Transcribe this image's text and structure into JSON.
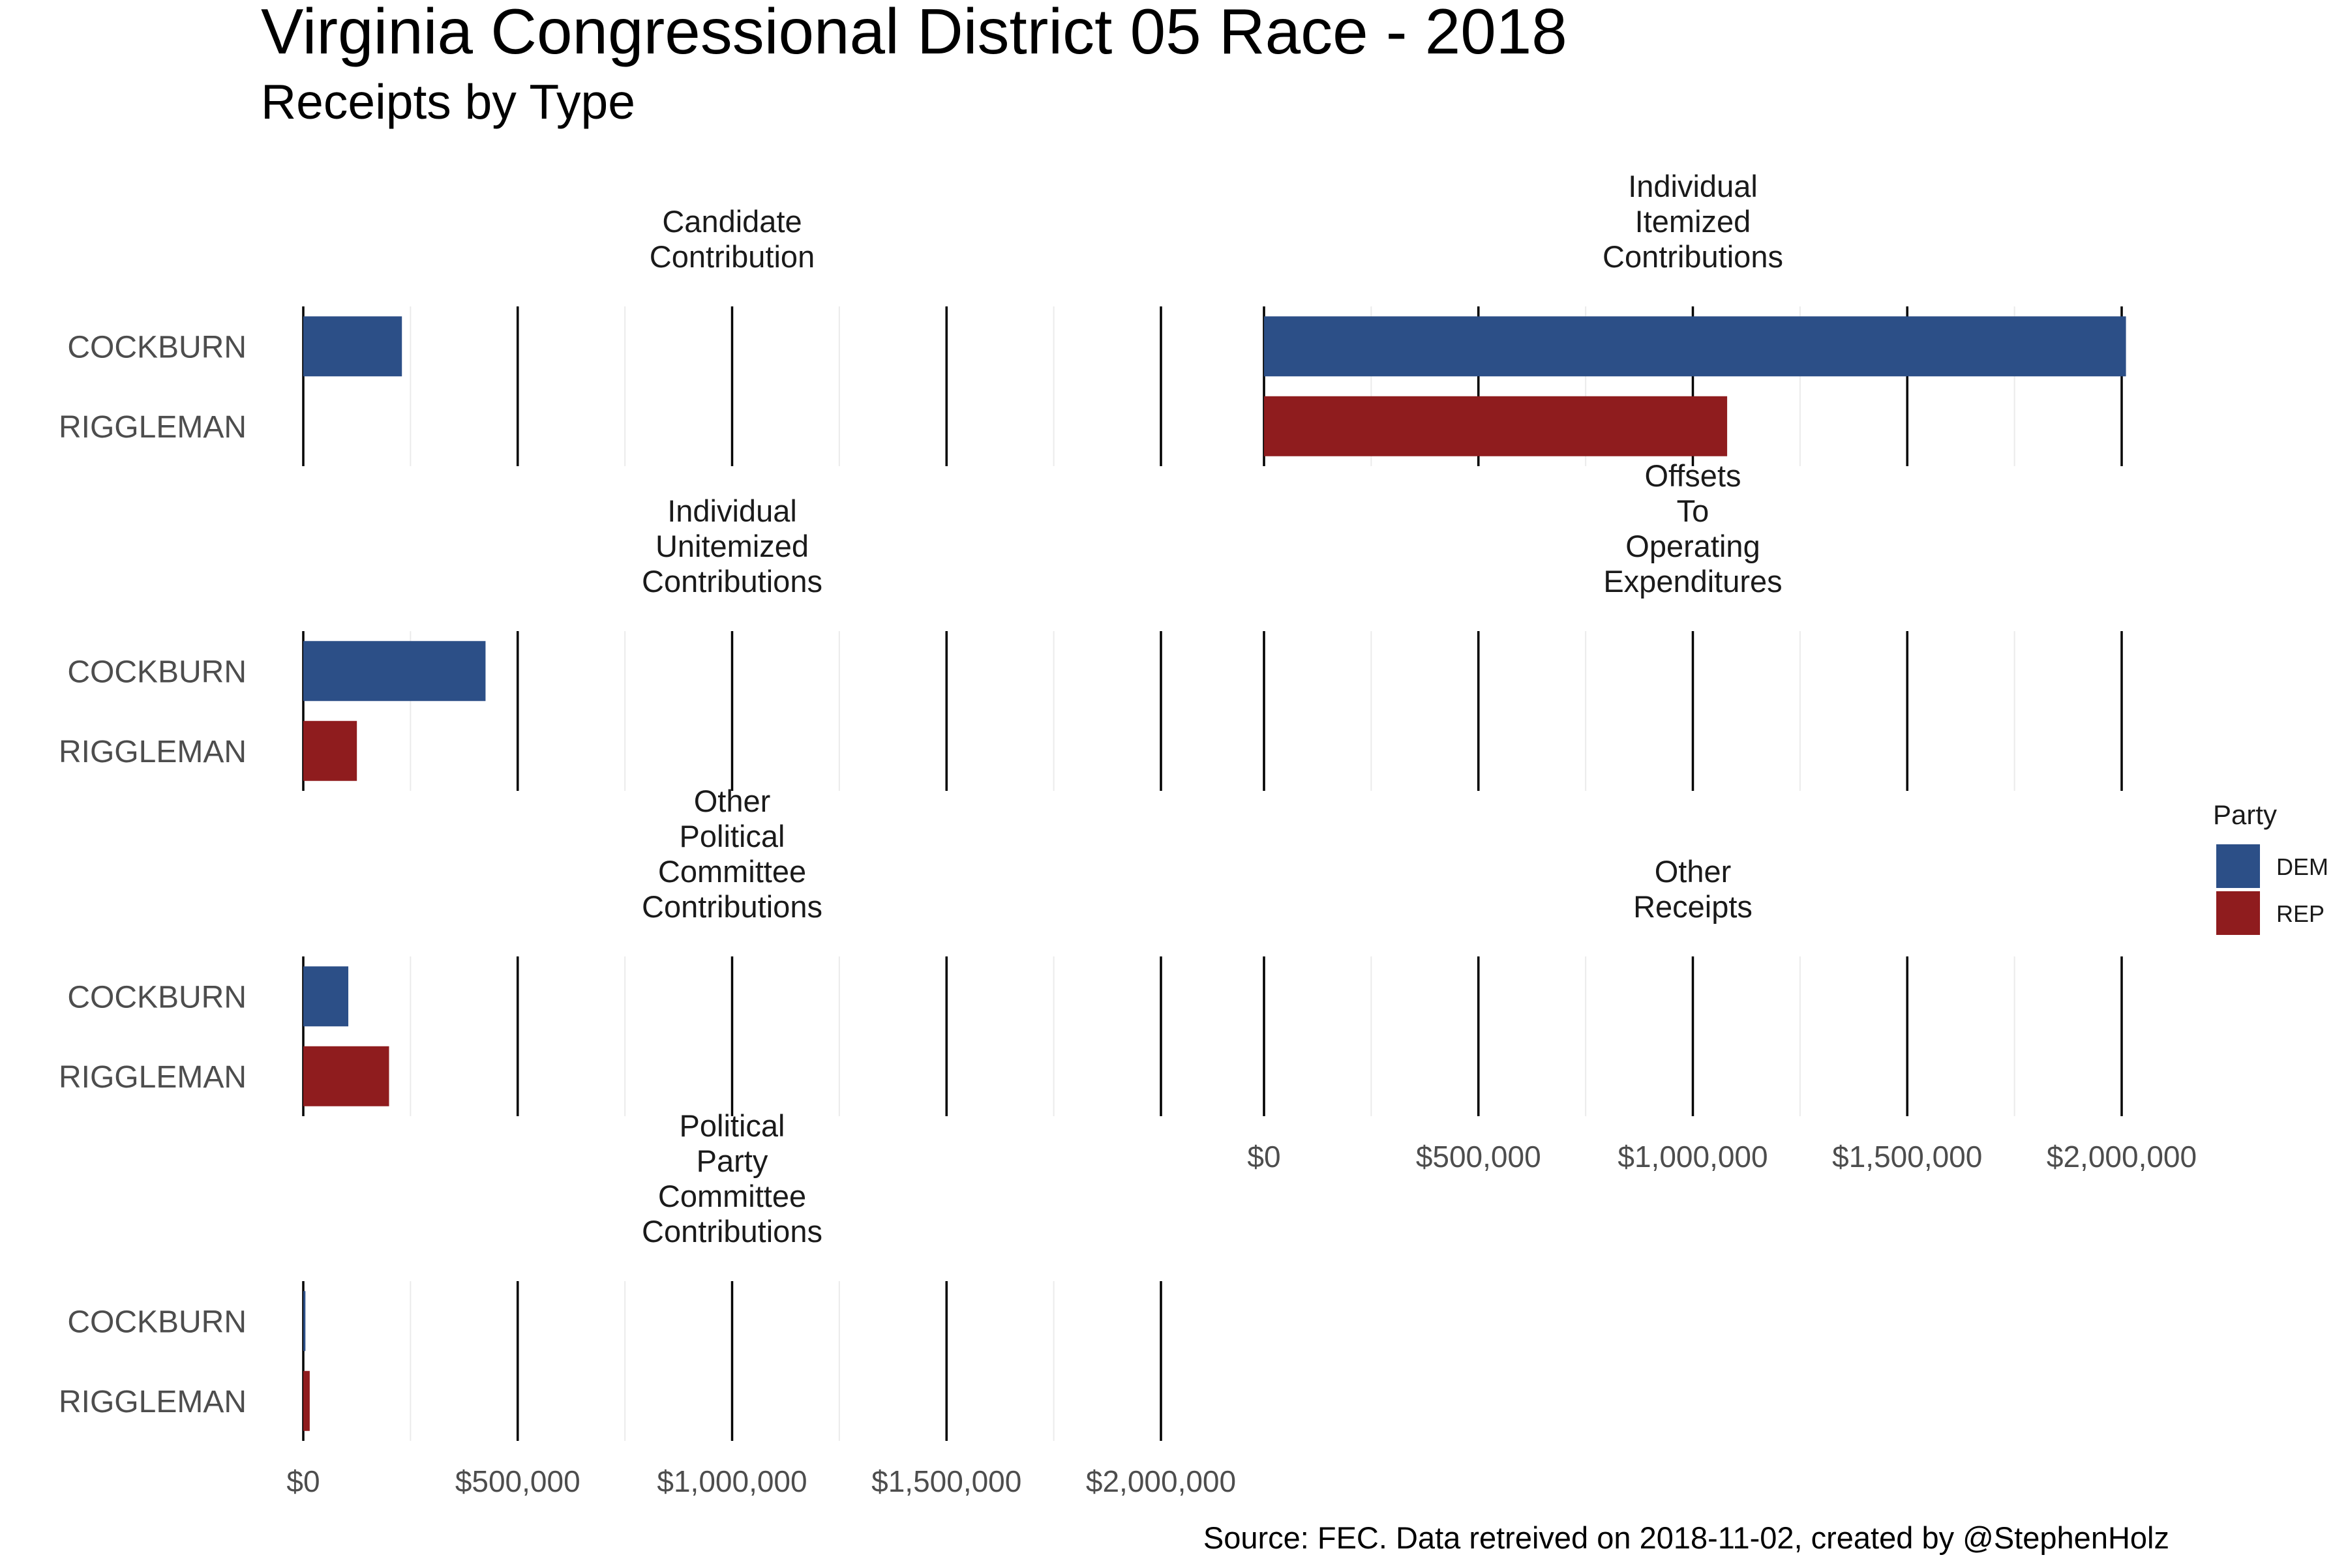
{
  "chart_data": {
    "type": "bar",
    "title": "Virginia Congressional District 05 Race - 2018",
    "subtitle": "Receipts by Type",
    "caption": "Source: FEC. Data retreived on 2018-11-02, created by @StephenHolz",
    "candidates": [
      "COCKBURN",
      "RIGGLEMAN"
    ],
    "xlim": [
      0,
      2000000
    ],
    "x_ticks": [
      0,
      500000,
      1000000,
      1500000,
      2000000
    ],
    "x_tick_labels": [
      "$0",
      "$500,000",
      "$1,000,000",
      "$1,500,000",
      "$2,000,000"
    ],
    "grid": true,
    "legend": {
      "title": "Party",
      "position": "right",
      "entries": [
        {
          "label": "DEM",
          "color": "#2c4f87"
        },
        {
          "label": "REP",
          "color": "#8f1c1e"
        }
      ]
    },
    "panels": [
      {
        "facet": "Candidate\nContribution",
        "values": [
          {
            "name": "COCKBURN",
            "party": "DEM",
            "value": 230000
          },
          {
            "name": "RIGGLEMAN",
            "party": "REP",
            "value": 0
          }
        ]
      },
      {
        "facet": "Individual\nItemized\nContributions",
        "values": [
          {
            "name": "COCKBURN",
            "party": "DEM",
            "value": 2010000
          },
          {
            "name": "RIGGLEMAN",
            "party": "REP",
            "value": 1080000
          }
        ]
      },
      {
        "facet": "Individual\nUnitemized\nContributions",
        "values": [
          {
            "name": "COCKBURN",
            "party": "DEM",
            "value": 425000
          },
          {
            "name": "RIGGLEMAN",
            "party": "REP",
            "value": 125000
          }
        ]
      },
      {
        "facet": "Offsets\nTo\nOperating\nExpenditures",
        "values": [
          {
            "name": "COCKBURN",
            "party": "DEM",
            "value": 0
          },
          {
            "name": "RIGGLEMAN",
            "party": "REP",
            "value": 0
          }
        ]
      },
      {
        "facet": "Other\nPolitical\nCommittee\nContributions",
        "values": [
          {
            "name": "COCKBURN",
            "party": "DEM",
            "value": 105000
          },
          {
            "name": "RIGGLEMAN",
            "party": "REP",
            "value": 200000
          }
        ]
      },
      {
        "facet": "Other\nReceipts",
        "values": [
          {
            "name": "COCKBURN",
            "party": "DEM",
            "value": 0
          },
          {
            "name": "RIGGLEMAN",
            "party": "REP",
            "value": 0
          }
        ]
      },
      {
        "facet": "Political\nParty\nCommittee\nContributions",
        "values": [
          {
            "name": "COCKBURN",
            "party": "DEM",
            "value": 5000
          },
          {
            "name": "RIGGLEMAN",
            "party": "REP",
            "value": 15000
          }
        ]
      }
    ]
  }
}
